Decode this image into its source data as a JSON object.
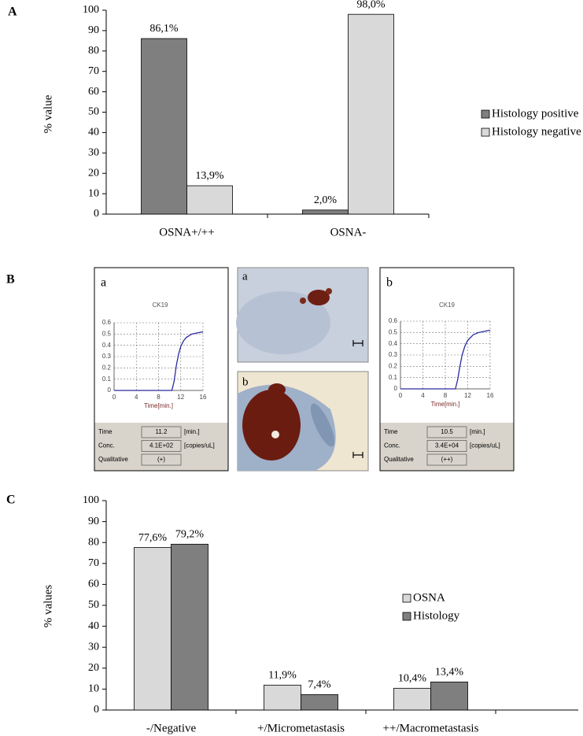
{
  "panel_labels": [
    "A",
    "B",
    "C"
  ],
  "chart_data": [
    {
      "type": "bar",
      "y_label": "% value",
      "categories": [
        "OSNA+/++",
        "OSNA-"
      ],
      "series": [
        {
          "name": "Histology positive",
          "color": "#7f7f7f",
          "values": [
            86.1,
            2.0
          ],
          "value_labels": [
            "86,1%",
            "2,0%"
          ]
        },
        {
          "name": "Histology negative",
          "color": "#d9d9d9",
          "values": [
            13.9,
            98.0
          ],
          "value_labels": [
            "13,9%",
            "98,0%"
          ]
        }
      ],
      "ylim": [
        0,
        100
      ],
      "yticks": [
        0,
        10,
        20,
        30,
        40,
        50,
        60,
        70,
        80,
        90,
        100
      ]
    },
    {
      "type": "line",
      "panel": "a",
      "title": "CK19",
      "x_label": "Time[min.]",
      "x": [
        0,
        10.4,
        10.8,
        11.2,
        11.6,
        12,
        12.5,
        13,
        14,
        15,
        16
      ],
      "series": [
        {
          "color": "#2b2ba0",
          "values": [
            0,
            0,
            0.08,
            0.22,
            0.32,
            0.39,
            0.44,
            0.47,
            0.5,
            0.51,
            0.52
          ]
        }
      ],
      "xlim": [
        0,
        16
      ],
      "ylim": [
        0,
        0.6
      ],
      "xticks": [
        0,
        4,
        8,
        12,
        16
      ],
      "yticks": [
        0,
        0.1,
        0.2,
        0.3,
        0.4,
        0.5,
        0.6
      ],
      "grid": true,
      "table": [
        [
          "Time",
          "11.2",
          "[min.]"
        ],
        [
          "Conc.",
          "4.1E+02",
          "[copies/uL]"
        ],
        [
          "Qualitative",
          "(+)"
        ]
      ]
    },
    {
      "type": "line",
      "panel": "b",
      "title": "CK19",
      "x_label": "Time[min.]",
      "x": [
        0,
        9.8,
        10.2,
        10.6,
        11,
        11.5,
        12,
        13,
        14,
        15,
        16
      ],
      "series": [
        {
          "color": "#2b2ba0",
          "values": [
            0,
            0,
            0.08,
            0.2,
            0.3,
            0.38,
            0.43,
            0.48,
            0.5,
            0.51,
            0.52
          ]
        }
      ],
      "xlim": [
        0,
        16
      ],
      "ylim": [
        0,
        0.6
      ],
      "xticks": [
        0,
        4,
        8,
        12,
        16
      ],
      "yticks": [
        0,
        0.1,
        0.2,
        0.3,
        0.4,
        0.5,
        0.6
      ],
      "grid": true,
      "table": [
        [
          "Time",
          "10.5",
          "[min.]"
        ],
        [
          "Conc.",
          "3.4E+04",
          "[copies/uL]"
        ],
        [
          "Qualitative",
          "(++)"
        ]
      ]
    },
    {
      "type": "bar",
      "y_label": "% values",
      "categories": [
        "-/Negative",
        "+/Micrometastasis",
        "++/Macrometastasis"
      ],
      "series": [
        {
          "name": "OSNA",
          "color": "#d9d9d9",
          "values": [
            77.6,
            11.9,
            10.4
          ],
          "value_labels": [
            "77,6%",
            "11,9%",
            "10,4%"
          ]
        },
        {
          "name": "Histology",
          "color": "#7f7f7f",
          "values": [
            79.2,
            7.4,
            13.4
          ],
          "value_labels": [
            "79,2%",
            "7,4%",
            "13,4%"
          ]
        }
      ],
      "ylim": [
        0,
        100
      ],
      "yticks": [
        0,
        10,
        20,
        30,
        40,
        50,
        60,
        70,
        80,
        90,
        100
      ]
    }
  ],
  "images": [
    "a",
    "b"
  ]
}
